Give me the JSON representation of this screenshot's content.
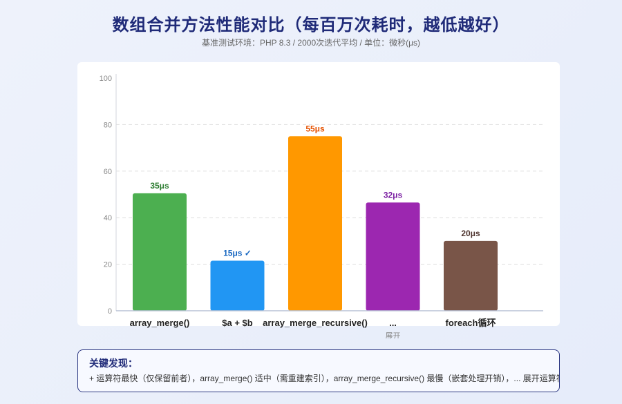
{
  "header": {
    "title": "数组合并方法性能对比（每百万次耗时，越低越好）",
    "subtitle": "基准测试环境：PHP 8.3 / 2000次迭代平均 / 单位：微秒(μs)"
  },
  "chart_data": {
    "type": "bar",
    "categories": [
      "array_merge()",
      "$a + $b",
      "array_merge_recursive()",
      "...",
      "foreach循环"
    ],
    "category_sublabels": [
      "",
      "",
      "",
      "展开",
      ""
    ],
    "values": [
      35,
      15,
      55,
      32,
      20
    ],
    "bar_heights": [
      50.5,
      21.5,
      75,
      46.5,
      30
    ],
    "data_labels": [
      "35μs",
      "15μs ✓",
      "55μs",
      "32μs",
      "20μs"
    ],
    "colors": [
      "#4caf50",
      "#2196f3",
      "#ff9800",
      "#9c27b0",
      "#795548"
    ],
    "label_colors": [
      "#2e7d32",
      "#1565c0",
      "#e65100",
      "#7b1fa2",
      "#4e342e"
    ],
    "y_ticks": [
      0,
      20,
      40,
      60,
      80,
      100
    ],
    "ylim": [
      0,
      100
    ],
    "grid": true
  },
  "findings": {
    "title": "关键发现：",
    "text": "+ 运算符最快（仅保留前者），array_merge() 适中（需重建索引），array_merge_recursive() 最慢（嵌套处理开销），... 展开运算符接近 array_merge"
  }
}
